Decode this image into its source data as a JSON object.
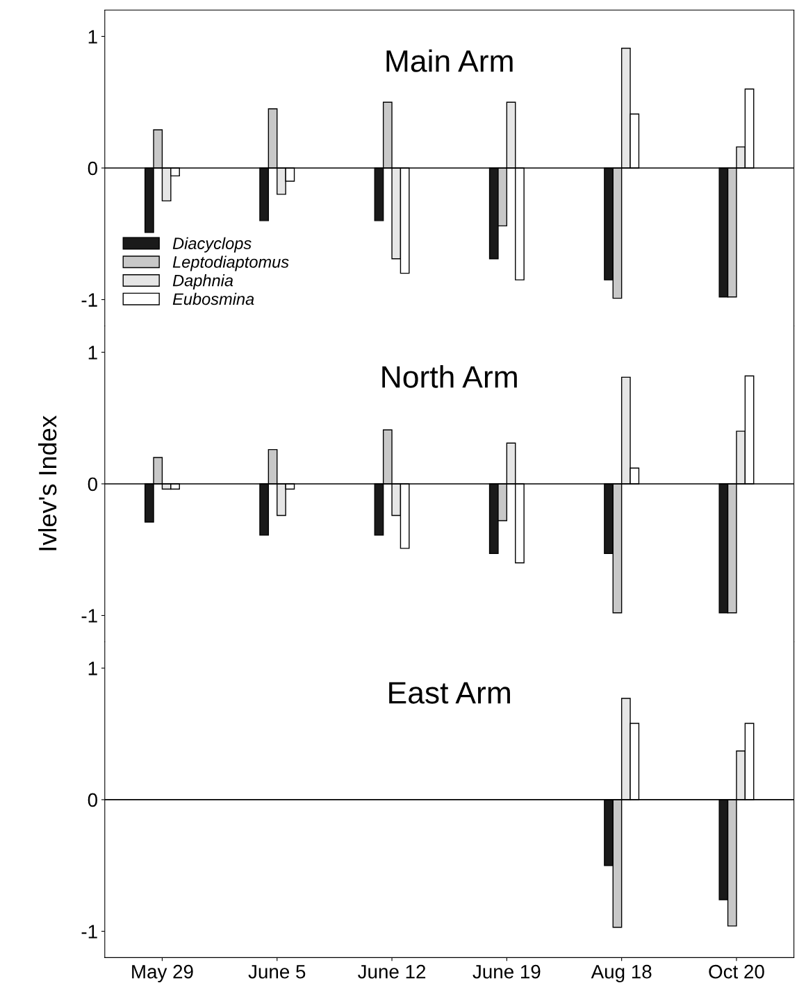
{
  "chart_data": [
    {
      "type": "bar",
      "title": "Main Arm",
      "ylim": [
        -1.2,
        1.2
      ],
      "yticks": [
        -1,
        0,
        1
      ],
      "tick_labels": "y",
      "legend": "left",
      "ref_lines": [
        {
          "axis": "y",
          "value": 0,
          "color": "#000000"
        }
      ],
      "series": [
        {
          "name": "Diacyclops",
          "color": "#1a1a1a",
          "values": [
            -0.49,
            -0.4,
            -0.4,
            -0.69,
            -0.85,
            -0.98
          ]
        },
        {
          "name": "Leptodiaptomus",
          "color": "#c8c8c8",
          "values": [
            0.29,
            0.45,
            0.5,
            -0.44,
            -0.99,
            -0.98
          ]
        },
        {
          "name": "Daphnia",
          "color": "#e6e6e6",
          "values": [
            -0.25,
            -0.2,
            -0.69,
            0.5,
            0.91,
            0.16
          ]
        },
        {
          "name": "Eubosmina",
          "color": "#ffffff",
          "values": [
            -0.06,
            -0.1,
            -0.8,
            -0.85,
            0.41,
            0.6
          ]
        }
      ]
    },
    {
      "type": "bar",
      "title": "North Arm",
      "ylabel": "Ivlev's Index",
      "ylim": [
        -1.2,
        1.2
      ],
      "yticks": [
        -1,
        0,
        1
      ],
      "tick_labels": "y",
      "ref_lines": [
        {
          "axis": "y",
          "value": 0,
          "color": "#000000"
        }
      ],
      "series": [
        {
          "color": "#1a1a1a",
          "values": [
            -0.29,
            -0.39,
            -0.39,
            -0.53,
            -0.53,
            -0.98
          ]
        },
        {
          "color": "#c8c8c8",
          "values": [
            0.2,
            0.26,
            0.41,
            -0.28,
            -0.98,
            -0.98
          ]
        },
        {
          "color": "#e6e6e6",
          "values": [
            -0.04,
            -0.24,
            -0.24,
            0.31,
            0.81,
            0.4
          ]
        },
        {
          "color": "#ffffff",
          "values": [
            -0.04,
            -0.04,
            -0.49,
            -0.6,
            0.12,
            0.82
          ]
        }
      ]
    },
    {
      "type": "bar",
      "title": "East Arm",
      "categories": [
        "May 29",
        "June 5",
        "June 12",
        "June 19",
        "Aug 18",
        "Oct 20"
      ],
      "ylim": [
        -1.2,
        1.2
      ],
      "yticks": [
        -1,
        0,
        1
      ],
      "ref_lines": [
        {
          "axis": "y",
          "value": 0,
          "color": "#000000"
        }
      ],
      "series": [
        {
          "color": "#1a1a1a",
          "values": [
            null,
            null,
            null,
            null,
            -0.5,
            -0.76
          ]
        },
        {
          "color": "#c8c8c8",
          "values": [
            null,
            null,
            null,
            null,
            -0.97,
            -0.96
          ]
        },
        {
          "color": "#e6e6e6",
          "values": [
            null,
            null,
            null,
            null,
            0.77,
            0.37
          ]
        },
        {
          "color": "#ffffff",
          "values": [
            null,
            null,
            null,
            null,
            0.58,
            0.58
          ]
        }
      ]
    }
  ]
}
